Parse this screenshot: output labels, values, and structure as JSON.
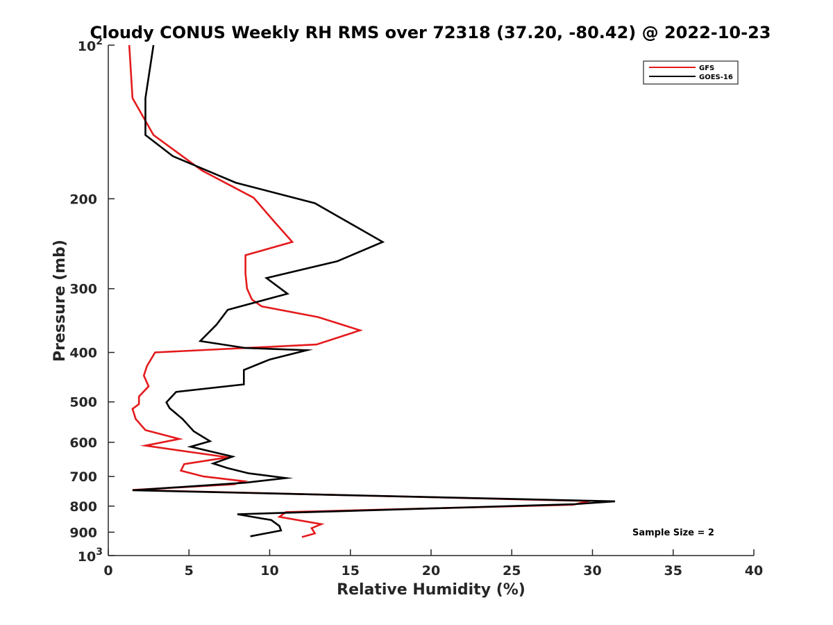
{
  "chart_data": {
    "type": "line",
    "title": "Cloudy CONUS Weekly RH RMS over 72318 (37.20, -80.42) @ 2022-10-23",
    "xlabel": "Relative Humidity (%)",
    "ylabel": "Pressure (mb)",
    "xlim": [
      0,
      40
    ],
    "ylim": [
      100,
      1000
    ],
    "yscale": "log",
    "yreversed": true,
    "x_ticks": [
      "0",
      "5",
      "10",
      "15",
      "20",
      "25",
      "30",
      "35",
      "40"
    ],
    "y_ticks": [
      {
        "value": 100,
        "label": "10",
        "sup": "2"
      },
      {
        "value": 200,
        "label": "200",
        "sup": ""
      },
      {
        "value": 300,
        "label": "300",
        "sup": ""
      },
      {
        "value": 400,
        "label": "400",
        "sup": ""
      },
      {
        "value": 500,
        "label": "500",
        "sup": ""
      },
      {
        "value": 600,
        "label": "600",
        "sup": ""
      },
      {
        "value": 700,
        "label": "700",
        "sup": ""
      },
      {
        "value": 800,
        "label": "800",
        "sup": ""
      },
      {
        "value": 900,
        "label": "900",
        "sup": ""
      },
      {
        "value": 1000,
        "label": "10",
        "sup": "3"
      }
    ],
    "legend_position": "top-right",
    "series": [
      {
        "name": "GFS",
        "color": "#e41a1c",
        "x": [
          1.3,
          1.5,
          2.8,
          5.8,
          9.0,
          10.3,
          11.4,
          8.5,
          8.5,
          8.6,
          8.9,
          9.5,
          13.0,
          15.6,
          12.9,
          2.9,
          2.4,
          2.2,
          2.5,
          1.9,
          1.9,
          1.5,
          1.7,
          2.3,
          4.4,
          2.3,
          7.4,
          4.7,
          4.5,
          5.9,
          8.4,
          7.8,
          1.5,
          29.8,
          28.8,
          11.0,
          10.6,
          13.2,
          12.6,
          12.8,
          12.0
        ],
        "y": [
          100,
          127,
          150,
          176,
          199,
          222,
          243,
          258,
          280,
          300,
          315,
          325,
          341,
          362,
          386,
          400,
          425,
          444,
          466,
          488,
          505,
          516,
          540,
          568,
          591,
          609,
          642,
          662,
          682,
          700,
          715,
          725,
          744,
          782,
          795,
          822,
          840,
          868,
          884,
          905,
          920
        ]
      },
      {
        "name": "GOES-16",
        "color": "#000000",
        "x": [
          2.8,
          2.3,
          2.3,
          4.0,
          7.9,
          12.8,
          17.0,
          14.2,
          9.8,
          11.1,
          7.4,
          6.7,
          5.7,
          8.5,
          12.3,
          10.0,
          8.4,
          8.4,
          4.2,
          3.6,
          3.8,
          4.6,
          5.3,
          6.3,
          5.1,
          7.7,
          6.5,
          7.4,
          8.7,
          11.0,
          8.5,
          1.5,
          31.4,
          28.9,
          8.0,
          10.1,
          10.6,
          10.7,
          8.8
        ],
        "y": [
          100,
          127,
          150,
          165,
          186,
          204,
          243,
          265,
          286,
          307,
          330,
          353,
          380,
          392,
          396,
          413,
          433,
          462,
          478,
          501,
          514,
          540,
          571,
          597,
          612,
          640,
          660,
          674,
          690,
          705,
          720,
          745,
          783,
          793,
          830,
          852,
          875,
          893,
          917
        ]
      }
    ],
    "annotation": "Sample Size = 2"
  }
}
